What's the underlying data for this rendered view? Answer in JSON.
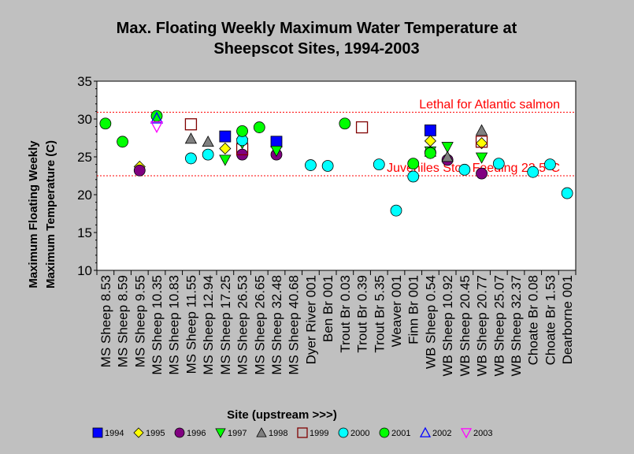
{
  "chart_data": {
    "type": "scatter",
    "title": "Max. Floating Weekly Maximum Water Temperature at Sheepscot Sites, 1994-2003",
    "title_lines": [
      "Max. Floating Weekly Maximum Water Temperature at",
      "Sheepscot Sites, 1994-2003"
    ],
    "xlabel": "Site (upstream >>>)",
    "ylabel_lines": [
      "Maximum Floating Weekly",
      "Maximum Temperature (C)"
    ],
    "ylim": [
      10,
      35
    ],
    "yticks": [
      "10",
      "15",
      "20",
      "25",
      "30",
      "35"
    ],
    "grid": false,
    "legend_position": "bottom",
    "categories": [
      "MS Sheep 8.53",
      "MS Sheep 8.59",
      "MS Sheep 9.55",
      "MS Sheep 10.35",
      "MS Sheep 10.83",
      "MS Sheep 11.55",
      "MS Sheep 12.94",
      "MS Sheep 17.25",
      "MS Sheep 26.53",
      "MS Sheep 26.65",
      "MS Sheep 32.48",
      "MS Sheep 40.68",
      "Dyer River 001",
      "Ben Br 001",
      "Trout Br 0.03",
      "Trout Br 0.39",
      "Trout Br 5.35",
      "Weaver 001",
      "Finn Br 001",
      "WB Sheep 0.54",
      "WB Sheep 10.92",
      "WB Sheep 20.45",
      "WB Sheep 20.77",
      "WB Sheep 25.07",
      "WB Sheep 32.37",
      "Choate Br 0.08",
      "Choate Br 1.53",
      "Dearborne 001"
    ],
    "reference_lines": [
      {
        "label": "Lethal for Atlantic salmon",
        "value": 30.9,
        "color": "#ff0000"
      },
      {
        "label": "Juveniles Stop Feeding 22.5°C",
        "value": 22.5,
        "color": "#ff0000"
      }
    ],
    "series": [
      {
        "name": "1994",
        "marker": "square",
        "color": "#0000ff",
        "points": [
          [
            7,
            27.7
          ],
          [
            10,
            27.0
          ],
          [
            19,
            28.5
          ]
        ]
      },
      {
        "name": "1995",
        "marker": "diamond",
        "color": "#ffff00",
        "points": [
          [
            2,
            23.7
          ],
          [
            7,
            26.1
          ],
          [
            19,
            27.1
          ],
          [
            22,
            26.8
          ]
        ]
      },
      {
        "name": "1996",
        "marker": "circle",
        "color": "#800080",
        "points": [
          [
            2,
            23.2
          ],
          [
            8,
            25.3
          ],
          [
            10,
            25.3
          ],
          [
            19,
            25.6
          ],
          [
            20,
            24.6
          ],
          [
            22,
            22.8
          ]
        ]
      },
      {
        "name": "1997",
        "marker": "triangle-down",
        "color": "#00ff00",
        "points": [
          [
            7,
            24.6
          ],
          [
            8,
            26.8
          ],
          [
            10,
            25.8
          ],
          [
            19,
            25.7
          ],
          [
            20,
            26.3
          ],
          [
            22,
            24.9
          ]
        ]
      },
      {
        "name": "1998",
        "marker": "triangle-up",
        "color": "#808080",
        "points": [
          [
            5,
            27.4
          ],
          [
            6,
            27.0
          ],
          [
            8,
            27.5
          ],
          [
            19,
            25.7
          ],
          [
            20,
            25.0
          ],
          [
            22,
            28.5
          ]
        ]
      },
      {
        "name": "1999",
        "marker": "square-open",
        "color": "#800000",
        "points": [
          [
            5,
            29.3
          ],
          [
            8,
            26.0
          ],
          [
            15,
            28.9
          ],
          [
            22,
            27.0
          ]
        ]
      },
      {
        "name": "2000",
        "marker": "circle",
        "color": "#00ffff",
        "points": [
          [
            5,
            24.8
          ],
          [
            6,
            25.3
          ],
          [
            8,
            27.2
          ],
          [
            12,
            23.9
          ],
          [
            13,
            23.8
          ],
          [
            16,
            24.0
          ],
          [
            17,
            17.9
          ],
          [
            18,
            22.4
          ],
          [
            21,
            23.3
          ],
          [
            23,
            24.1
          ],
          [
            25,
            23.0
          ],
          [
            26,
            24.0
          ],
          [
            27,
            20.2
          ]
        ]
      },
      {
        "name": "2001",
        "marker": "circle",
        "color": "#00ff00",
        "points": [
          [
            0,
            29.4
          ],
          [
            1,
            27.0
          ],
          [
            3,
            30.4
          ],
          [
            8,
            28.4
          ],
          [
            9,
            28.9
          ],
          [
            14,
            29.4
          ],
          [
            18,
            24.1
          ],
          [
            19,
            25.5
          ]
        ]
      },
      {
        "name": "2002",
        "marker": "triangle-up-open",
        "color": "#0000ff",
        "points": [
          [
            3,
            30.1
          ]
        ]
      },
      {
        "name": "2003",
        "marker": "triangle-down-open",
        "color": "#ff00ff",
        "points": [
          [
            3,
            29.0
          ]
        ]
      }
    ]
  }
}
